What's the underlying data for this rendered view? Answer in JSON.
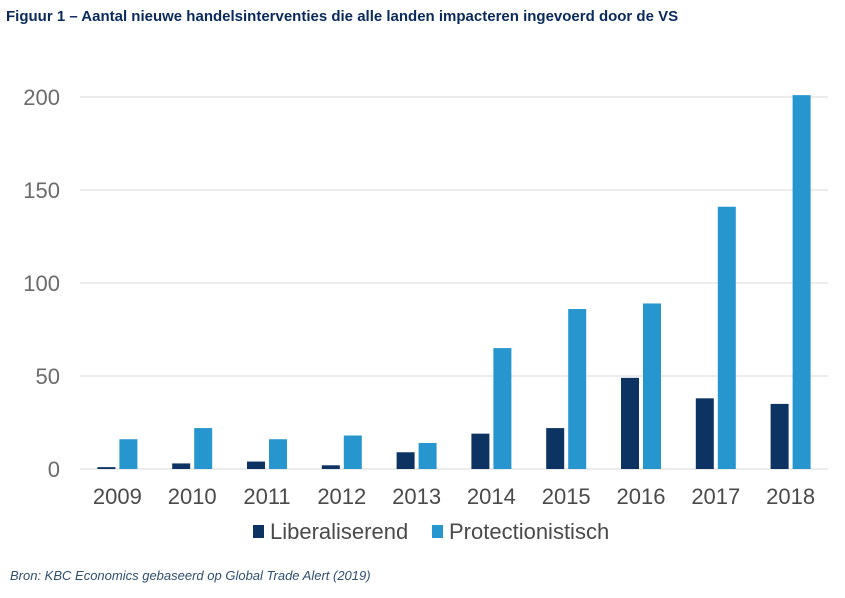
{
  "header": {
    "title": "Figuur 1 – Aantal nieuwe handelsinterventies die alle landen impacteren ingevoerd door de VS"
  },
  "footer": {
    "source": "Bron: KBC Economics gebaseerd op Global Trade Alert (2019)"
  },
  "colors": {
    "liberaliserend": "#0d3363",
    "protectionistisch": "#2796cf",
    "grid": "#d9d9d9"
  },
  "chart_data": {
    "type": "bar",
    "title": "",
    "xlabel": "",
    "ylabel": "",
    "categories": [
      "2009",
      "2010",
      "2011",
      "2012",
      "2013",
      "2014",
      "2015",
      "2016",
      "2017",
      "2018"
    ],
    "series": [
      {
        "name": "Liberaliserend",
        "values": [
          1,
          3,
          4,
          2,
          9,
          19,
          22,
          49,
          38,
          35
        ]
      },
      {
        "name": "Protectionistisch",
        "values": [
          16,
          22,
          16,
          18,
          14,
          65,
          86,
          89,
          141,
          201
        ]
      }
    ],
    "ylim": [
      0,
      200
    ],
    "yticks": [
      0,
      50,
      100,
      150,
      200
    ],
    "grid": true,
    "legend": "bottom-center"
  }
}
